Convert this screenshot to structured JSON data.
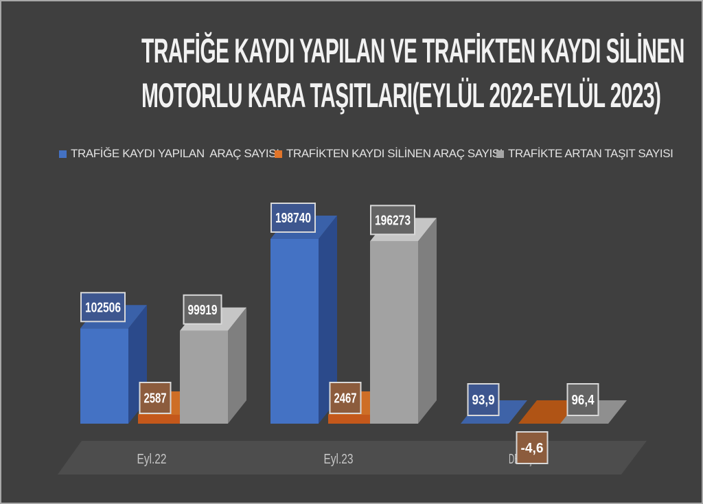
{
  "window": {
    "background": "#3F3F3F",
    "border_color": "#A8A8A8"
  },
  "header": {
    "line1": "TRAFİĞE KAYDI YAPILAN VE TRAFİKTEN KAYDI SİLİNEN",
    "line2": "MOTORLU KARA TAŞITLARI(EYLÜL 2022-EYLÜL 2023)"
  },
  "legend": {
    "items": [
      {
        "label": "TRAFİĞE KAYDI YAPILAN  ARAÇ SAYISI",
        "color": "#4472C4"
      },
      {
        "label": "TRAFİKTEN KAYDI SİLİNEN ARAÇ SAYISI",
        "color": "#E1752A"
      },
      {
        "label": "TRAFİKTE ARTAN TAŞIT SAYISI",
        "color": "#A6A6A6"
      }
    ]
  },
  "chart_data": {
    "type": "bar",
    "style": "3d-clustered-column",
    "title": "TRAFİĞE KAYDI YAPILAN VE TRAFİKTEN KAYDI SİLİNEN MOTORLU KARA TAŞITLARI(EYLÜL 2022-EYLÜL 2023)",
    "categories": [
      "Eyl.22",
      "Eyl.23",
      "DEĞİŞİM%"
    ],
    "series": [
      {
        "name": "TRAFİĞE KAYDI YAPILAN  ARAÇ SAYISI",
        "color": "#4472C4",
        "values": [
          102506,
          198740,
          93.9
        ],
        "data_labels": [
          "102506",
          "198740",
          "93,9"
        ],
        "bar_colors": {
          "front": "#4472C4",
          "top": "#3A61A9",
          "side": "#2B4A8B",
          "flat": "#3E63A8",
          "label_fill": "#3D568F"
        }
      },
      {
        "name": "TRAFİKTEN KAYDI SİLİNEN ARAÇ SAYISI",
        "color": "#E1752A",
        "values": [
          2587,
          2467,
          -4.6
        ],
        "data_labels": [
          "2587",
          "2467",
          "-4,6"
        ],
        "bar_colors": {
          "front": "#C4581B",
          "top": "#CE6E26",
          "side": "#93430D",
          "flat": "#B05415",
          "label_fill": "#8C5C3D"
        }
      },
      {
        "name": "TRAFİKTE ARTAN TAŞIT SAYISI",
        "color": "#A6A6A6",
        "values": [
          99919,
          196273,
          96.4
        ],
        "data_labels": [
          "99919",
          "196273",
          "96,4"
        ],
        "bar_colors": {
          "front": "#A2A2A2",
          "top": "#C6C6C6",
          "side": "#7F7F7F",
          "flat": "#8F8F8F",
          "label_fill": "#646464"
        }
      }
    ],
    "value_axis": {
      "visible": false,
      "implied_max": 200000
    },
    "gridlines": false,
    "legend_position": "top",
    "label_box_border": "#D9D9D9",
    "label_text_color": "#FFFFFF",
    "category_label_color": "#C6C6C6",
    "floor_color": "#4D4D4D"
  }
}
